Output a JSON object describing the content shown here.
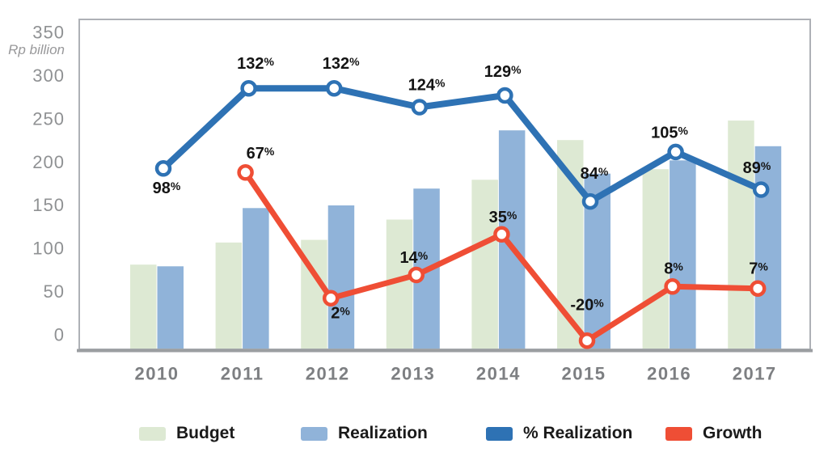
{
  "chart_data": {
    "type": "combo-bar-line",
    "unit_label": "Rp billion",
    "percent_symbol": "%",
    "categories": [
      "2010",
      "2011",
      "2012",
      "2013",
      "2014",
      "2015",
      "2016",
      "2017"
    ],
    "y_axis": {
      "ticks": [
        350,
        300,
        250,
        200,
        150,
        100,
        50,
        0
      ],
      "ylim": [
        0,
        350
      ],
      "grid": false
    },
    "series": [
      {
        "name": "Budget",
        "type": "bar",
        "color": "#dde9d3",
        "values": [
          96,
          121,
          124,
          147,
          192,
          237,
          204,
          259
        ]
      },
      {
        "name": "Realization",
        "type": "bar",
        "color": "#90b3d9",
        "values": [
          94,
          160,
          163,
          182,
          248,
          199,
          214,
          230
        ]
      },
      {
        "name": "% Realization",
        "type": "line",
        "color": "#2e72b4",
        "values_pct": [
          98,
          132,
          132,
          124,
          129,
          84,
          105,
          89
        ],
        "labels": [
          "98",
          "132",
          "132",
          "124",
          "129",
          "84",
          "105",
          "89"
        ],
        "display_range_pct": [
          21.2,
          161.6
        ]
      },
      {
        "name": "Growth",
        "type": "line",
        "color": "#ef4e35",
        "values_pct": [
          null,
          67,
          2,
          14,
          35,
          -20,
          8,
          7
        ],
        "labels": [
          null,
          "67",
          "2",
          "14",
          "35",
          "-20",
          "8",
          "7"
        ],
        "display_range_pct": [
          -24.5,
          146.6
        ]
      }
    ]
  },
  "legend": {
    "items": [
      {
        "label": "Budget",
        "color": "#dde9d3"
      },
      {
        "label": "Realization",
        "color": "#90b3d9"
      },
      {
        "label": "% Realization",
        "color": "#2e72b4"
      },
      {
        "label": "Growth",
        "color": "#ef4e35"
      }
    ]
  }
}
